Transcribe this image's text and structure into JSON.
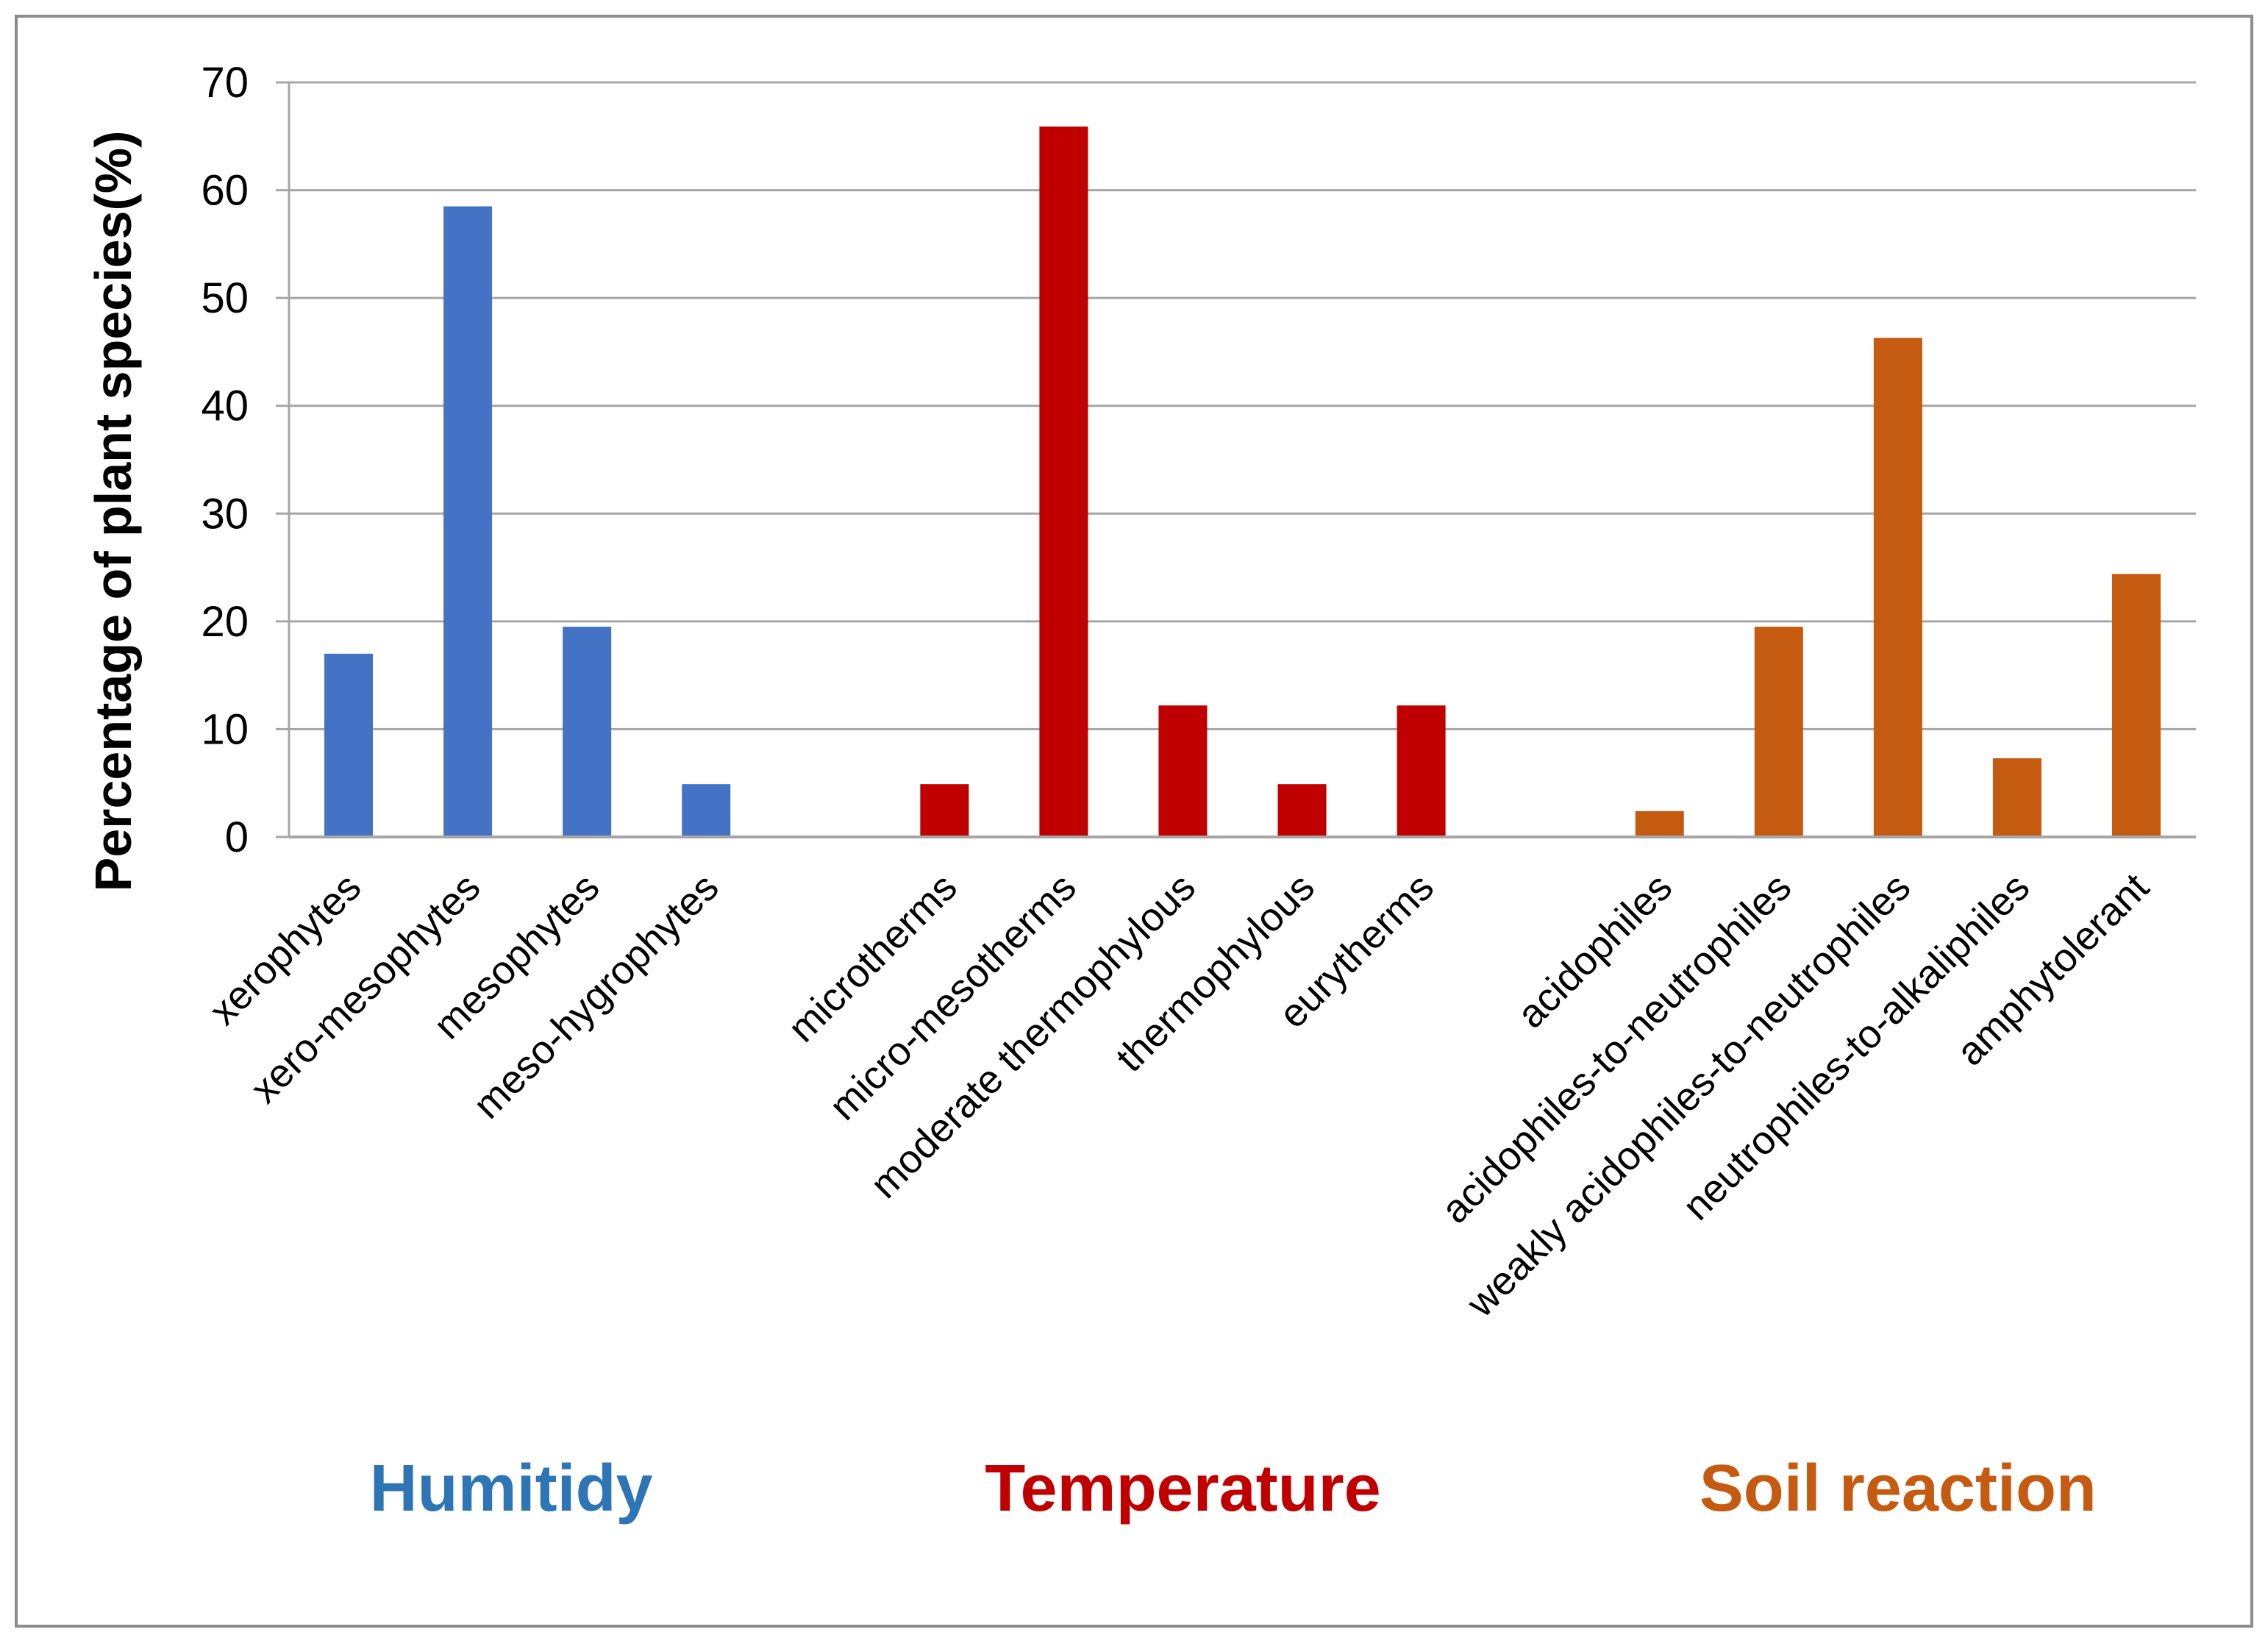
{
  "chart_data": {
    "type": "bar",
    "title": "",
    "xlabel": "",
    "ylabel": "Percentage of plant species(%)",
    "ylim": [
      0,
      70
    ],
    "yticks": [
      0,
      10,
      20,
      30,
      40,
      50,
      60,
      70
    ],
    "grid": true,
    "legend": "none",
    "categories": [
      "xerophytes",
      "xero-mesophytes",
      "mesophytes",
      "meso-hygrophytes",
      "",
      "microtherms",
      "micro-mesotherms",
      "moderate thermophylous",
      "thermophylous",
      "eurytherms",
      "",
      "acidophiles",
      "acidophiles-to-neutrophiles",
      "weakly acidophiles-to-neutrophiles",
      "neutrophiles-to-alkaliphiles",
      "amphytolerant"
    ],
    "values": [
      17,
      58.5,
      19.5,
      4.9,
      null,
      4.9,
      65.9,
      12.2,
      4.9,
      12.2,
      null,
      2.4,
      19.5,
      46.3,
      7.3,
      24.4
    ],
    "groups": [
      {
        "name": "Humitidy",
        "color": "#4472C4",
        "label_color": "#2E75B6",
        "indices": [
          0,
          1,
          2,
          3
        ]
      },
      {
        "name": "Temperature",
        "color": "#C00000",
        "label_color": "#C00000",
        "indices": [
          5,
          6,
          7,
          8,
          9
        ]
      },
      {
        "name": "Soil reaction",
        "color": "#C55A11",
        "label_color": "#C55A11",
        "indices": [
          11,
          12,
          13,
          14,
          15
        ]
      }
    ]
  }
}
